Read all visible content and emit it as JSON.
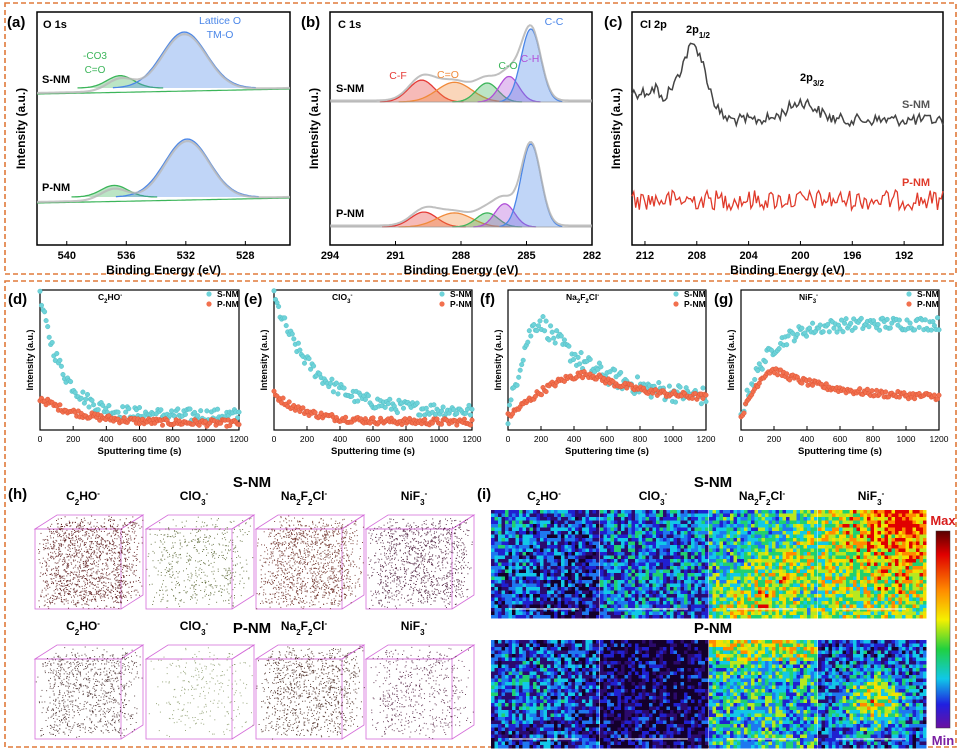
{
  "colors": {
    "frame": "#E07A3A",
    "blue": "#4A86E8",
    "green": "#3CB55A",
    "red": "#E53935",
    "orange": "#F08A3A",
    "purple": "#B04FD8",
    "gray": "#444444",
    "scrapeRed": "#E03A2A",
    "cyan": "#6ED3D9",
    "coral": "#F2704E",
    "box": "#D46BD9"
  },
  "chart_data": [
    {
      "id": "a",
      "type": "line",
      "panel_label": "(a)",
      "title": "O 1s",
      "xlabel": "Binding Energy (eV)",
      "ylabel": "Intensity (a.u.)",
      "xlim": [
        542,
        525
      ],
      "xticks": [
        540,
        536,
        532,
        528
      ],
      "series": [
        {
          "name": "S-NM",
          "fits": [
            {
              "label": "-CO3 / C=O",
              "center": 536.4,
              "height": 0.22
            },
            {
              "label": "Lattice O / TM-O",
              "center": 532.1,
              "height": 1.0
            }
          ]
        },
        {
          "name": "P-NM",
          "fits": [
            {
              "label": "-CO3 / C=O",
              "center": 536.8,
              "height": 0.2
            },
            {
              "label": "Lattice O / TM-O",
              "center": 531.9,
              "height": 1.0
            }
          ]
        }
      ],
      "annotations": [
        "-CO3",
        "C=O",
        "Lattice O",
        "TM-O",
        "S-NM",
        "P-NM"
      ]
    },
    {
      "id": "b",
      "type": "line",
      "panel_label": "(b)",
      "title": "C 1s",
      "xlabel": "Binding Energy (eV)",
      "ylabel": "Intensity (a.u.)",
      "xlim": [
        294,
        282
      ],
      "xticks": [
        294,
        291,
        288,
        285,
        282
      ],
      "series": [
        {
          "name": "S-NM",
          "fits": [
            {
              "label": "C-F",
              "center": 289.8,
              "height": 0.3
            },
            {
              "label": "C=O",
              "center": 288.3,
              "height": 0.27
            },
            {
              "label": "C-O",
              "center": 286.8,
              "height": 0.26
            },
            {
              "label": "C-H",
              "center": 285.8,
              "height": 0.35
            },
            {
              "label": "C-C",
              "center": 284.8,
              "height": 1.0
            }
          ]
        },
        {
          "name": "P-NM",
          "fits": [
            {
              "label": "C-F",
              "center": 289.7,
              "height": 0.18
            },
            {
              "label": "C=O",
              "center": 288.3,
              "height": 0.17
            },
            {
              "label": "C-O",
              "center": 286.8,
              "height": 0.17
            },
            {
              "label": "C-H",
              "center": 286.0,
              "height": 0.28
            },
            {
              "label": "C-C",
              "center": 284.8,
              "height": 1.0
            }
          ]
        }
      ],
      "annotations": [
        "C-F",
        "C=O",
        "C-O",
        "C-H",
        "C-C",
        "S-NM",
        "P-NM"
      ]
    },
    {
      "id": "c",
      "type": "line",
      "panel_label": "(c)",
      "title": "Cl 2p",
      "xlabel": "Binding Energy (eV)",
      "ylabel": "Intensity (a.u.)",
      "xlim": [
        213,
        189
      ],
      "xticks": [
        212,
        208,
        204,
        200,
        196,
        192
      ],
      "series": [
        {
          "name": "S-NM",
          "peaks": [
            {
              "label": "2p1/2",
              "center": 208.1
            },
            {
              "label": "2p3/2",
              "center": 199.9
            }
          ]
        },
        {
          "name": "P-NM",
          "peaks": []
        }
      ],
      "annotations": [
        "2p1/2",
        "2p3/2",
        "S-NM",
        "P-NM"
      ]
    },
    {
      "id": "d",
      "type": "scatter",
      "panel_label": "(d)",
      "ion": "C2HO-",
      "xlabel": "Sputtering time (s)",
      "ylabel": "Intensity (a.u.)",
      "xlim": [
        0,
        1200
      ],
      "xticks": [
        0,
        200,
        400,
        600,
        800,
        1000,
        1200
      ],
      "series": [
        {
          "name": "S-NM",
          "start": 1.0,
          "plateau": 0.11,
          "tau": 140
        },
        {
          "name": "P-NM",
          "start": 0.24,
          "plateau": 0.05,
          "tau": 250
        }
      ]
    },
    {
      "id": "e",
      "type": "scatter",
      "panel_label": "(e)",
      "ion": "ClO3-",
      "xlabel": "Sputtering time (s)",
      "ylabel": "Intensity (a.u.)",
      "xlim": [
        0,
        1200
      ],
      "xticks": [
        0,
        200,
        400,
        600,
        800,
        1000,
        1200
      ],
      "series": [
        {
          "name": "S-NM",
          "start": 1.0,
          "plateau": 0.14,
          "tau": 240
        },
        {
          "name": "P-NM",
          "start": 0.27,
          "plateau": 0.06,
          "tau": 200
        }
      ]
    },
    {
      "id": "f",
      "type": "scatter",
      "panel_label": "(f)",
      "ion": "Na2F2Cl-",
      "xlabel": "Sputtering time (s)",
      "ylabel": "Intensity (a.u.)",
      "xlim": [
        0,
        1200
      ],
      "xticks": [
        0,
        200,
        400,
        600,
        800,
        1000,
        1200
      ],
      "series": [
        {
          "name": "S-NM",
          "start": 0.1,
          "peak": 0.82,
          "peak_time": 200,
          "plateau": 0.22
        },
        {
          "name": "P-NM",
          "start": 0.1,
          "peak": 0.42,
          "peak_time": 500,
          "plateau": 0.22
        }
      ]
    },
    {
      "id": "g",
      "type": "scatter",
      "panel_label": "(g)",
      "ion": "NiF3-",
      "xlabel": "Sputtering time (s)",
      "ylabel": "Intensity (a.u.)",
      "xlim": [
        0,
        1200
      ],
      "xticks": [
        0,
        200,
        400,
        600,
        800,
        1000,
        1200
      ],
      "series": [
        {
          "name": "S-NM",
          "start": 0.1,
          "plateau": 0.8,
          "tau": 150
        },
        {
          "name": "P-NM",
          "start": 0.1,
          "plateau": 0.4,
          "peak": 0.45,
          "peak_time": 200,
          "end": 0.24
        }
      ]
    }
  ],
  "panel_h": {
    "label": "(h)",
    "row_top": "S-NM",
    "row_bottom": "P-NM",
    "ions": [
      "C2HO-",
      "ClO3-",
      "Na2F2Cl-",
      "NiF3-"
    ],
    "dot_colors": [
      "#5A1818",
      "#5F6B3A",
      "#6A2A22",
      "#4A1A3A"
    ],
    "bottom_dot_colors": [
      "#4A3030",
      "#8A9A6A",
      "#4A2A22",
      "#5A2A4A"
    ]
  },
  "panel_i": {
    "label": "(i)",
    "row_top": "S-NM",
    "row_bottom": "P-NM",
    "ions": [
      "C2HO-",
      "ClO3-",
      "Na2F2Cl-",
      "NiF3-"
    ],
    "colorbar_max": "Max",
    "colorbar_min": "Min"
  }
}
